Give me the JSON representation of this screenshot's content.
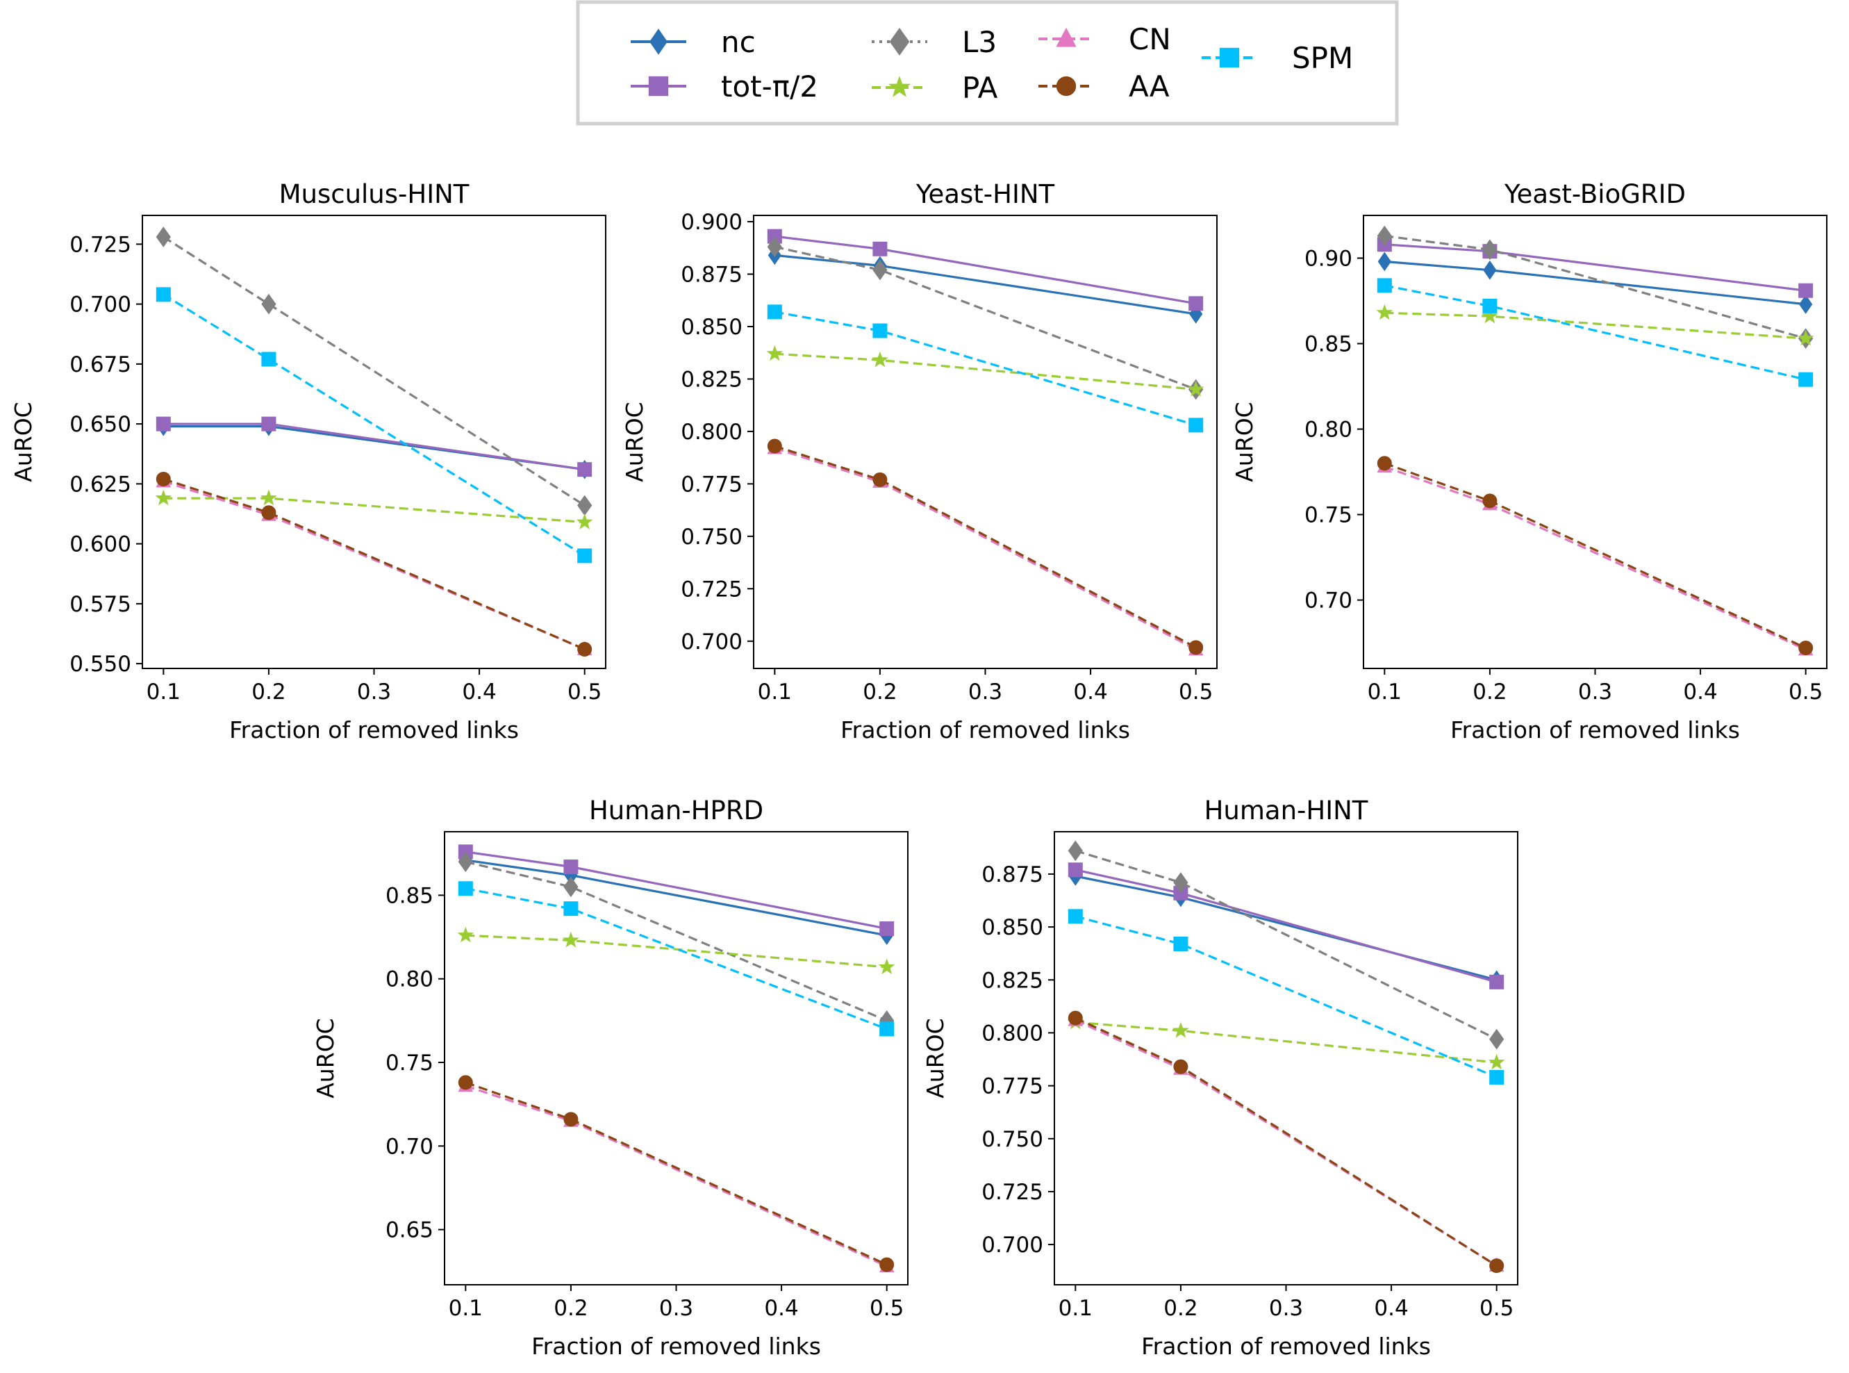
{
  "legend": {
    "location": "top-center",
    "entries": [
      {
        "key": "nc",
        "label": "nc"
      },
      {
        "key": "tot",
        "label": "tot-π/2"
      },
      {
        "key": "L3",
        "label": "L3"
      },
      {
        "key": "PA",
        "label": "PA"
      },
      {
        "key": "CN",
        "label": "CN"
      },
      {
        "key": "AA",
        "label": "AA"
      },
      {
        "key": "SPM",
        "label": "SPM"
      }
    ]
  },
  "styles": {
    "nc": {
      "color": "#2a72b5",
      "marker": "diamond-thin",
      "dash": "solid"
    },
    "tot": {
      "color": "#9467bd",
      "marker": "square",
      "dash": "solid"
    },
    "L3": {
      "color": "#808080",
      "marker": "diamond",
      "dash": "dashed"
    },
    "PA": {
      "color": "#9acd32",
      "marker": "star",
      "dash": "dashed"
    },
    "CN": {
      "color": "#e377c2",
      "marker": "triangle",
      "dash": "dashed"
    },
    "AA": {
      "color": "#8b4513",
      "marker": "circle",
      "dash": "dashed"
    },
    "SPM": {
      "color": "#00bfff",
      "marker": "square",
      "dash": "dashed"
    }
  },
  "chart_data": [
    {
      "type": "line",
      "title": "Musculus-HINT",
      "xlabel": "Fraction of removed links",
      "ylabel": "AuROC",
      "x": [
        0.1,
        0.2,
        0.5
      ],
      "xticks": [
        "0.1",
        "0.2",
        "0.3",
        "0.4",
        "0.5"
      ],
      "xtick_values": [
        0.1,
        0.2,
        0.3,
        0.4,
        0.5
      ],
      "yticks": [
        "0.550",
        "0.575",
        "0.600",
        "0.625",
        "0.650",
        "0.675",
        "0.700",
        "0.725"
      ],
      "ytick_values": [
        0.55,
        0.575,
        0.6,
        0.625,
        0.65,
        0.675,
        0.7,
        0.725
      ],
      "xlim": [
        0.08,
        0.52
      ],
      "ylim": [
        0.548,
        0.737
      ],
      "series": [
        {
          "key": "nc",
          "name": "nc",
          "values": [
            0.649,
            0.649,
            0.631
          ]
        },
        {
          "key": "tot",
          "name": "tot-π/2",
          "values": [
            0.65,
            0.65,
            0.631
          ]
        },
        {
          "key": "L3",
          "name": "L3",
          "values": [
            0.728,
            0.7,
            0.616
          ]
        },
        {
          "key": "PA",
          "name": "PA",
          "values": [
            0.619,
            0.619,
            0.609
          ]
        },
        {
          "key": "CN",
          "name": "CN",
          "values": [
            0.626,
            0.612,
            0.556
          ]
        },
        {
          "key": "AA",
          "name": "AA",
          "values": [
            0.627,
            0.613,
            0.556
          ]
        },
        {
          "key": "SPM",
          "name": "SPM",
          "values": [
            0.704,
            0.677,
            0.595
          ]
        }
      ]
    },
    {
      "type": "line",
      "title": "Yeast-HINT",
      "xlabel": "Fraction of removed links",
      "ylabel": "AuROC",
      "x": [
        0.1,
        0.2,
        0.5
      ],
      "xticks": [
        "0.1",
        "0.2",
        "0.3",
        "0.4",
        "0.5"
      ],
      "xtick_values": [
        0.1,
        0.2,
        0.3,
        0.4,
        0.5
      ],
      "yticks": [
        "0.700",
        "0.725",
        "0.750",
        "0.775",
        "0.800",
        "0.825",
        "0.850",
        "0.875",
        "0.900"
      ],
      "ytick_values": [
        0.7,
        0.725,
        0.75,
        0.775,
        0.8,
        0.825,
        0.85,
        0.875,
        0.9
      ],
      "xlim": [
        0.08,
        0.52
      ],
      "ylim": [
        0.687,
        0.903
      ],
      "series": [
        {
          "key": "nc",
          "name": "nc",
          "values": [
            0.884,
            0.879,
            0.856
          ]
        },
        {
          "key": "tot",
          "name": "tot-π/2",
          "values": [
            0.893,
            0.887,
            0.861
          ]
        },
        {
          "key": "L3",
          "name": "L3",
          "values": [
            0.888,
            0.877,
            0.82
          ]
        },
        {
          "key": "PA",
          "name": "PA",
          "values": [
            0.837,
            0.834,
            0.82
          ]
        },
        {
          "key": "CN",
          "name": "CN",
          "values": [
            0.792,
            0.776,
            0.696
          ]
        },
        {
          "key": "AA",
          "name": "AA",
          "values": [
            0.793,
            0.777,
            0.697
          ]
        },
        {
          "key": "SPM",
          "name": "SPM",
          "values": [
            0.857,
            0.848,
            0.803
          ]
        }
      ]
    },
    {
      "type": "line",
      "title": "Yeast-BioGRID",
      "xlabel": "Fraction of removed links",
      "ylabel": "AuROC",
      "x": [
        0.1,
        0.2,
        0.5
      ],
      "xticks": [
        "0.1",
        "0.2",
        "0.3",
        "0.4",
        "0.5"
      ],
      "xtick_values": [
        0.1,
        0.2,
        0.3,
        0.4,
        0.5
      ],
      "yticks": [
        "0.70",
        "0.75",
        "0.80",
        "0.85",
        "0.90"
      ],
      "ytick_values": [
        0.7,
        0.75,
        0.8,
        0.85,
        0.9
      ],
      "xlim": [
        0.08,
        0.52
      ],
      "ylim": [
        0.66,
        0.925
      ],
      "series": [
        {
          "key": "nc",
          "name": "nc",
          "values": [
            0.898,
            0.893,
            0.873
          ]
        },
        {
          "key": "tot",
          "name": "tot-π/2",
          "values": [
            0.908,
            0.904,
            0.881
          ]
        },
        {
          "key": "L3",
          "name": "L3",
          "values": [
            0.913,
            0.905,
            0.853
          ]
        },
        {
          "key": "PA",
          "name": "PA",
          "values": [
            0.868,
            0.866,
            0.853
          ]
        },
        {
          "key": "CN",
          "name": "CN",
          "values": [
            0.778,
            0.756,
            0.671
          ]
        },
        {
          "key": "AA",
          "name": "AA",
          "values": [
            0.78,
            0.758,
            0.672
          ]
        },
        {
          "key": "SPM",
          "name": "SPM",
          "values": [
            0.884,
            0.872,
            0.829
          ]
        }
      ]
    },
    {
      "type": "line",
      "title": "Human-HPRD",
      "xlabel": "Fraction of removed links",
      "ylabel": "AuROC",
      "x": [
        0.1,
        0.2,
        0.5
      ],
      "xticks": [
        "0.1",
        "0.2",
        "0.3",
        "0.4",
        "0.5"
      ],
      "xtick_values": [
        0.1,
        0.2,
        0.3,
        0.4,
        0.5
      ],
      "yticks": [
        "0.65",
        "0.70",
        "0.75",
        "0.80",
        "0.85"
      ],
      "ytick_values": [
        0.65,
        0.7,
        0.75,
        0.8,
        0.85
      ],
      "xlim": [
        0.08,
        0.52
      ],
      "ylim": [
        0.617,
        0.888
      ],
      "series": [
        {
          "key": "nc",
          "name": "nc",
          "values": [
            0.871,
            0.862,
            0.826
          ]
        },
        {
          "key": "tot",
          "name": "tot-π/2",
          "values": [
            0.876,
            0.867,
            0.83
          ]
        },
        {
          "key": "L3",
          "name": "L3",
          "values": [
            0.87,
            0.855,
            0.775
          ]
        },
        {
          "key": "PA",
          "name": "PA",
          "values": [
            0.826,
            0.823,
            0.807
          ]
        },
        {
          "key": "CN",
          "name": "CN",
          "values": [
            0.736,
            0.715,
            0.628
          ]
        },
        {
          "key": "AA",
          "name": "AA",
          "values": [
            0.738,
            0.716,
            0.629
          ]
        },
        {
          "key": "SPM",
          "name": "SPM",
          "values": [
            0.854,
            0.842,
            0.77
          ]
        }
      ]
    },
    {
      "type": "line",
      "title": "Human-HINT",
      "xlabel": "Fraction of removed links",
      "ylabel": "AuROC",
      "x": [
        0.1,
        0.2,
        0.5
      ],
      "xticks": [
        "0.1",
        "0.2",
        "0.3",
        "0.4",
        "0.5"
      ],
      "xtick_values": [
        0.1,
        0.2,
        0.3,
        0.4,
        0.5
      ],
      "yticks": [
        "0.700",
        "0.725",
        "0.750",
        "0.775",
        "0.800",
        "0.825",
        "0.850",
        "0.875"
      ],
      "ytick_values": [
        0.7,
        0.725,
        0.75,
        0.775,
        0.8,
        0.825,
        0.85,
        0.875
      ],
      "xlim": [
        0.08,
        0.52
      ],
      "ylim": [
        0.681,
        0.895
      ],
      "series": [
        {
          "key": "nc",
          "name": "nc",
          "values": [
            0.874,
            0.864,
            0.825
          ]
        },
        {
          "key": "tot",
          "name": "tot-π/2",
          "values": [
            0.877,
            0.866,
            0.824
          ]
        },
        {
          "key": "L3",
          "name": "L3",
          "values": [
            0.886,
            0.871,
            0.797
          ]
        },
        {
          "key": "PA",
          "name": "PA",
          "values": [
            0.805,
            0.801,
            0.786
          ]
        },
        {
          "key": "CN",
          "name": "CN",
          "values": [
            0.806,
            0.783,
            0.69
          ]
        },
        {
          "key": "AA",
          "name": "AA",
          "values": [
            0.807,
            0.784,
            0.69
          ]
        },
        {
          "key": "SPM",
          "name": "SPM",
          "values": [
            0.855,
            0.842,
            0.779
          ]
        }
      ]
    }
  ]
}
